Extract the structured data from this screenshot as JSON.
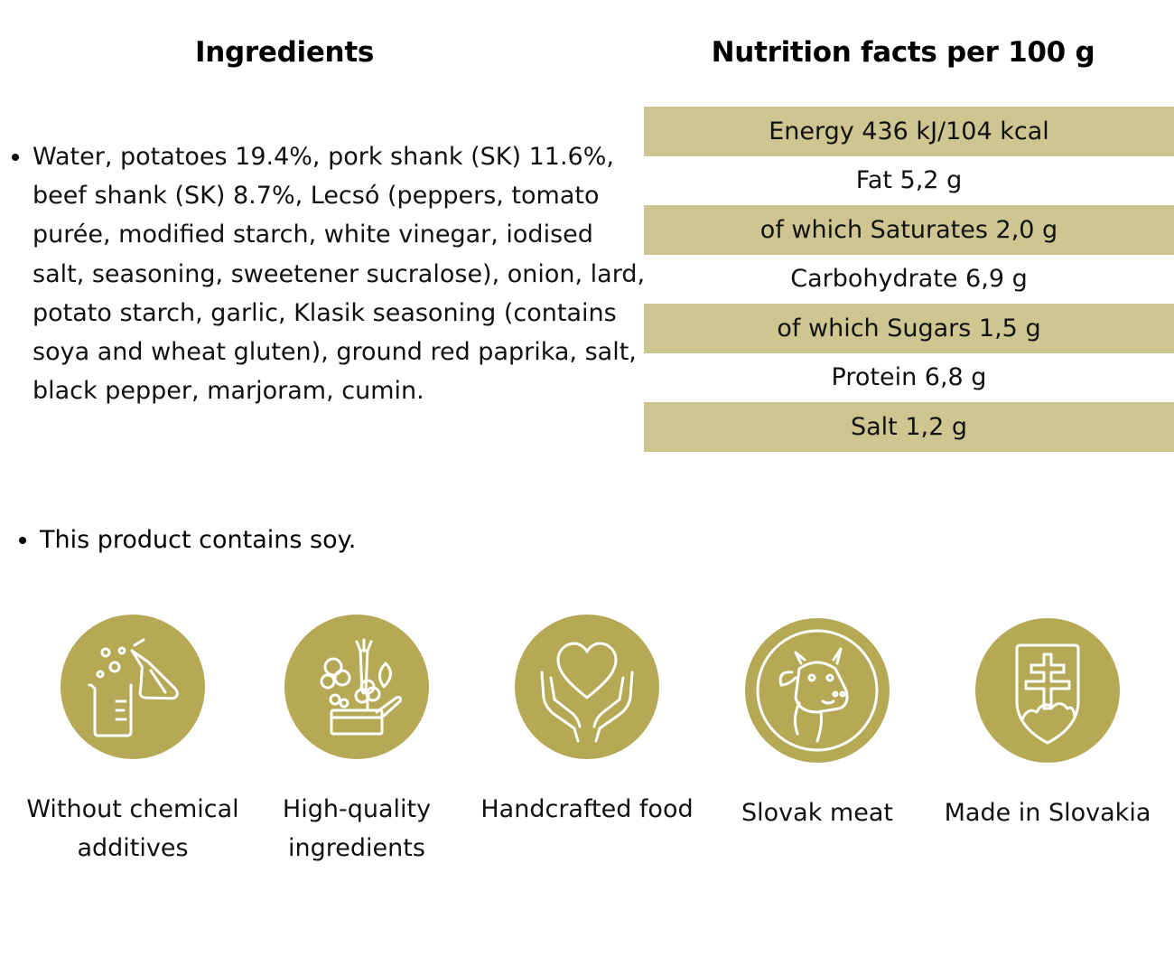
{
  "ingredients": {
    "heading": "Ingredients",
    "items": [
      "Water, potatoes 19.4%, pork shank (SK) 11.6%, beef shank (SK) 8.7%, Lecsó (peppers, tomato purée, modified starch, white vinegar, iodised salt, seasoning, sweetener sucralose), onion, lard, potato starch, garlic, Klasik seasoning (contains soya and wheat gluten), ground red paprika, salt, black pepper, marjoram, cumin."
    ],
    "allergen_note": "This product contains soy."
  },
  "nutrition": {
    "heading": "Nutrition facts per 100 g",
    "rows": [
      "Energy 436 kJ/104 kcal",
      "Fat 5,2 g",
      "of which Saturates 2,0 g",
      "Carbohydrate 6,9 g",
      "of which Sugars 1,5 g",
      "Protein 6,8 g",
      "Salt 1,2 g"
    ]
  },
  "features": [
    {
      "label": "Without chemical additives",
      "icon": "lab-flask-icon"
    },
    {
      "label": "High-quality ingredients",
      "icon": "vegetables-basket-icon"
    },
    {
      "label": "Handcrafted food",
      "icon": "heart-in-hands-icon"
    },
    {
      "label": "Slovak meat",
      "icon": "cow-icon"
    },
    {
      "label": "Made in Slovakia",
      "icon": "slovak-coat-of-arms-icon"
    }
  ],
  "colors": {
    "accent": "#b5a955",
    "table_shade": "#cdc690"
  }
}
